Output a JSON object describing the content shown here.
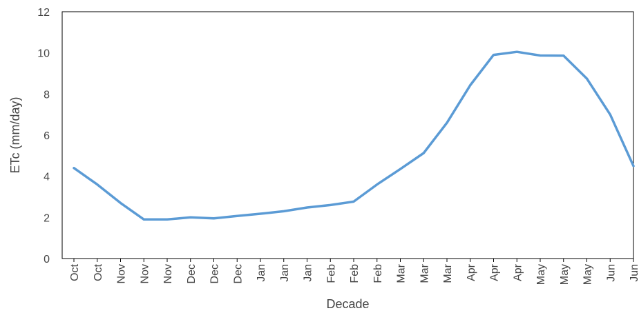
{
  "chart_data": {
    "type": "line",
    "title": "",
    "xlabel": "Decade",
    "ylabel": "ETc (mm/day)",
    "ylim": [
      0,
      12
    ],
    "yticks": [
      0,
      2,
      4,
      6,
      8,
      10,
      12
    ],
    "grid": false,
    "categories": [
      "Oct",
      "Oct",
      "Nov",
      "Nov",
      "Nov",
      "Dec",
      "Dec",
      "Dec",
      "Jan",
      "Jan",
      "Jan",
      "Feb",
      "Feb",
      "Feb",
      "Mar",
      "Mar",
      "Mar",
      "Apr",
      "Apr",
      "Apr",
      "May",
      "May",
      "May",
      "Jun",
      "Jun"
    ],
    "series": [
      {
        "color": "#5b9bd5",
        "values": [
          4.4,
          3.6,
          2.7,
          1.9,
          1.9,
          2.0,
          1.95,
          2.07,
          2.18,
          2.3,
          2.48,
          2.6,
          2.77,
          3.6,
          4.35,
          5.13,
          6.6,
          8.43,
          9.9,
          10.05,
          9.87,
          9.86,
          8.75,
          7.0,
          4.5
        ]
      }
    ]
  }
}
